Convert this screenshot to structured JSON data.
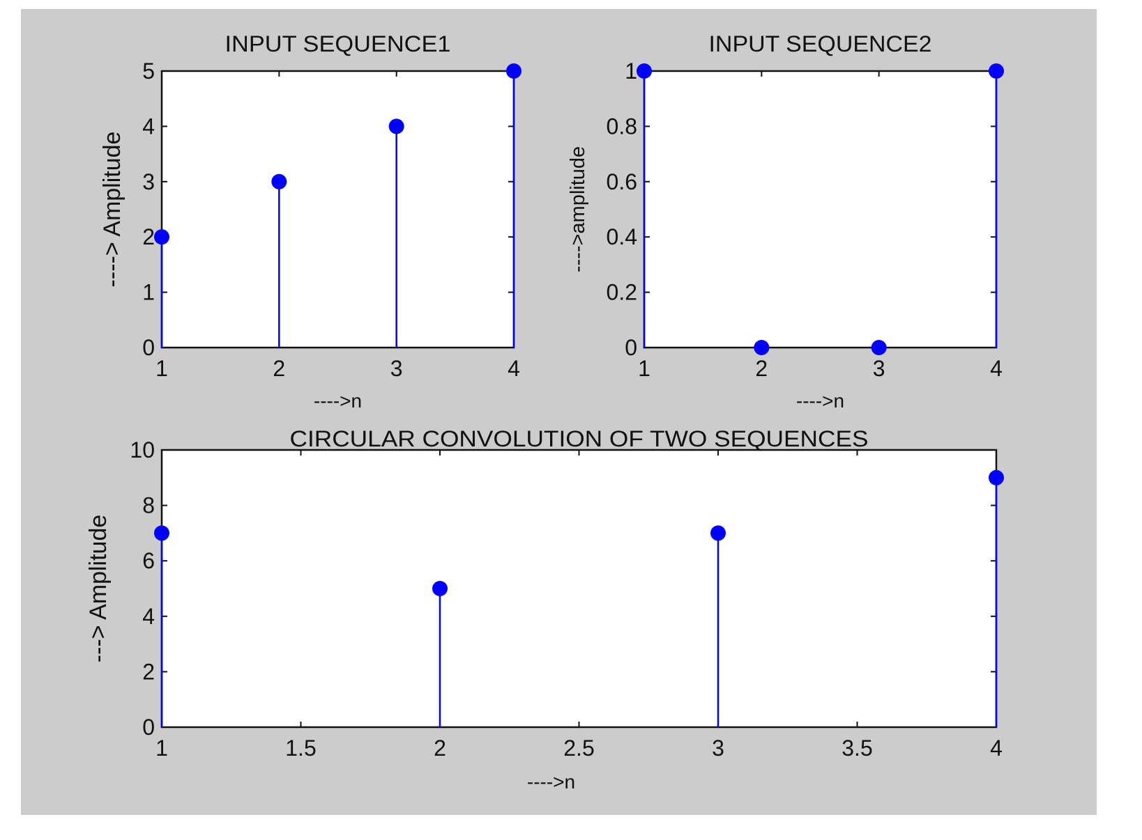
{
  "figure": {
    "background": "#ffffff",
    "panel_color": "#cccccc",
    "axes_color": "#ffffff",
    "stem_color": "#0000ff",
    "frame_color": "#111111"
  },
  "chart_data": [
    {
      "type": "stem",
      "title": "INPUT SEQUENCE1",
      "xlabel": "---->n",
      "ylabel": "----> Amplitude",
      "x": [
        1,
        2,
        3,
        4
      ],
      "values": [
        2,
        3,
        4,
        5
      ],
      "xlim": [
        1,
        4
      ],
      "ylim": [
        0,
        5
      ],
      "xticks": [
        1,
        2,
        3,
        4
      ],
      "xtick_labels": [
        "1",
        "2",
        "3",
        "4"
      ],
      "yticks": [
        0,
        1,
        2,
        3,
        4,
        5
      ],
      "ytick_labels": [
        "0",
        "1",
        "2",
        "3",
        "4",
        "5"
      ],
      "grid": false,
      "legend": null
    },
    {
      "type": "stem",
      "title": "INPUT SEQUENCE2",
      "xlabel": "---->n",
      "ylabel": "---->amplitude",
      "x": [
        1,
        2,
        3,
        4
      ],
      "values": [
        1,
        0,
        0,
        1
      ],
      "xlim": [
        1,
        4
      ],
      "ylim": [
        0,
        1
      ],
      "xticks": [
        1,
        2,
        3,
        4
      ],
      "xtick_labels": [
        "1",
        "2",
        "3",
        "4"
      ],
      "yticks": [
        0,
        0.2,
        0.4,
        0.6,
        0.8,
        1
      ],
      "ytick_labels": [
        "0",
        "0.2",
        "0.4",
        "0.6",
        "0.8",
        "1"
      ],
      "grid": false,
      "legend": null
    },
    {
      "type": "stem",
      "title": "CIRCULAR CONVOLUTION OF TWO SEQUENCES",
      "xlabel": "---->n",
      "ylabel": "---> Amplitude",
      "x": [
        1,
        2,
        3,
        4
      ],
      "values": [
        7,
        5,
        7,
        9
      ],
      "xlim": [
        1,
        4
      ],
      "ylim": [
        0,
        10
      ],
      "xticks": [
        1,
        1.5,
        2,
        2.5,
        3,
        3.5,
        4
      ],
      "xtick_labels": [
        "1",
        "1.5",
        "2",
        "2.5",
        "3",
        "3.5",
        "4"
      ],
      "yticks": [
        0,
        2,
        4,
        6,
        8,
        10
      ],
      "ytick_labels": [
        "0",
        "2",
        "4",
        "6",
        "8",
        "10"
      ],
      "grid": false,
      "legend": null
    }
  ]
}
